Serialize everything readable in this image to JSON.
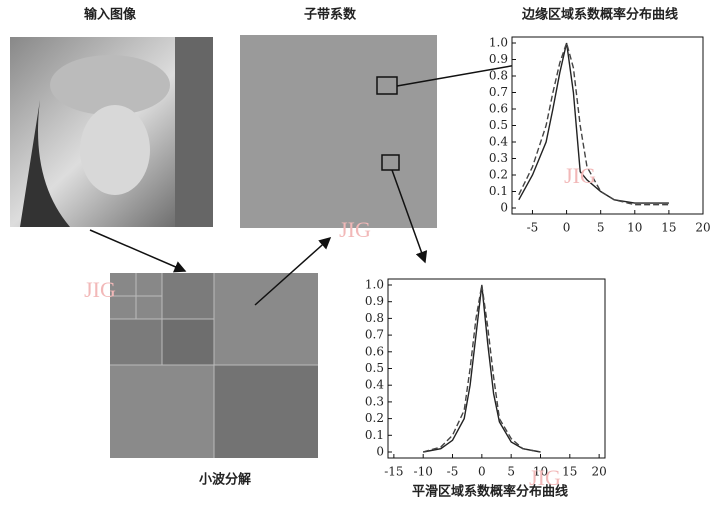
{
  "labels": {
    "input": "输入图像",
    "subband": "子带系数",
    "wavelet": "小波分解"
  },
  "watermarks": [
    "JIG",
    "JIG",
    "JIG",
    "JIG"
  ],
  "charts": [
    {
      "type": "line",
      "title": "边缘区域系数概率分布曲线",
      "x": [
        -7,
        -5,
        -3,
        -2,
        -1,
        0,
        1,
        2,
        3,
        5,
        7,
        10,
        15
      ],
      "series": [
        {
          "color": "#222",
          "dashed": false,
          "values": [
            0.05,
            0.2,
            0.4,
            0.6,
            0.82,
            1.0,
            0.7,
            0.22,
            0.17,
            0.1,
            0.05,
            0.03,
            0.03
          ]
        },
        {
          "color": "#444",
          "dashed": true,
          "values": [
            0.08,
            0.25,
            0.5,
            0.7,
            0.88,
            1.0,
            0.85,
            0.5,
            0.25,
            0.1,
            0.05,
            0.02,
            0.02
          ]
        }
      ],
      "xlim": [
        -8,
        20
      ],
      "ylim": [
        0,
        1
      ],
      "xticks": [
        -5,
        0,
        5,
        10,
        15,
        20
      ],
      "yticks": [
        0,
        0.1,
        0.2,
        0.3,
        0.4,
        0.5,
        0.6,
        0.7,
        0.8,
        0.9,
        {
          "value": 1,
          "label": "1.0"
        }
      ]
    },
    {
      "type": "line",
      "title": "平滑区域系数概率分布曲线",
      "x": [
        -10,
        -7,
        -5,
        -3,
        -2,
        -1,
        0,
        1,
        2,
        3,
        5,
        7,
        10
      ],
      "series": [
        {
          "color": "#222",
          "dashed": false,
          "values": [
            0,
            0.02,
            0.07,
            0.2,
            0.4,
            0.7,
            1.0,
            0.65,
            0.35,
            0.18,
            0.06,
            0.02,
            0
          ]
        },
        {
          "color": "#444",
          "dashed": true,
          "values": [
            0,
            0.03,
            0.1,
            0.25,
            0.5,
            0.8,
            1.0,
            0.75,
            0.45,
            0.2,
            0.08,
            0.02,
            0
          ]
        }
      ],
      "xlim": [
        -16,
        21
      ],
      "ylim": [
        0,
        1
      ],
      "xticks": [
        -15,
        -10,
        -5,
        0,
        5,
        10,
        15,
        20
      ],
      "yticks": [
        0,
        0.1,
        0.2,
        0.3,
        0.4,
        0.5,
        0.6,
        0.7,
        0.8,
        0.9,
        {
          "value": 1,
          "label": "1.0"
        }
      ]
    }
  ]
}
